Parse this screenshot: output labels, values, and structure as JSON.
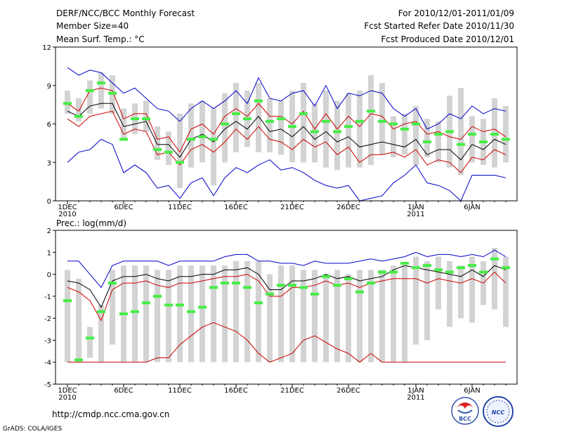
{
  "header": {
    "title": "DERF/NCC/BCC Monthly Forecast",
    "member_size": "Member Size=40",
    "for_range": "For 2010/12/01-2011/01/09",
    "fcst_started": "Fcst Started Refer Date 2010/11/30",
    "fcst_produced": "Fcst Produced Date 2010/12/01"
  },
  "footer": {
    "url": "http://cmdp.ncc.cma.gov.cn",
    "grads": "GrADS: COLA/IGES",
    "logo_left": "BCC",
    "logo_right": "NCC"
  },
  "colors": {
    "envelope": "#0000cc",
    "spread": "#cc0000",
    "mean": "#000000",
    "box": "#d3d3d3",
    "observed": "#44ee44"
  },
  "chart_data": [
    {
      "type": "box-line",
      "title": "Mean Surf. Temp.: °C",
      "ylim": [
        0,
        12
      ],
      "yticks": [
        0,
        3,
        6,
        9,
        12
      ],
      "xticks": [
        {
          "day": 0,
          "label": "1DEC",
          "sub": "2010"
        },
        {
          "day": 5,
          "label": "6DEC",
          "sub": ""
        },
        {
          "day": 10,
          "label": "11DEC",
          "sub": ""
        },
        {
          "day": 15,
          "label": "16DEC",
          "sub": ""
        },
        {
          "day": 20,
          "label": "21DEC",
          "sub": ""
        },
        {
          "day": 25,
          "label": "26DEC",
          "sub": ""
        },
        {
          "day": 31,
          "label": "1JAN",
          "sub": "2011"
        },
        {
          "day": 36,
          "label": "6JAN",
          "sub": ""
        }
      ],
      "box_low": [
        6.8,
        6.2,
        6.8,
        7.2,
        6.8,
        4.8,
        5.2,
        5.4,
        3.2,
        2.8,
        1.0,
        2.6,
        3.0,
        1.2,
        3.0,
        3.8,
        4.2,
        3.8,
        3.8,
        3.6,
        3.0,
        3.0,
        3.0,
        2.6,
        2.4,
        2.6,
        2.6,
        2.8,
        3.6,
        3.4,
        3.6,
        2.8,
        3.4,
        3.0,
        2.6,
        2.0,
        3.0,
        2.8,
        2.6,
        3.0
      ],
      "box_high": [
        8.6,
        8.0,
        9.4,
        10.0,
        9.8,
        7.2,
        7.6,
        7.8,
        5.8,
        5.4,
        6.8,
        7.6,
        7.8,
        7.2,
        8.4,
        9.2,
        8.6,
        9.2,
        8.0,
        7.8,
        8.6,
        9.2,
        7.6,
        8.6,
        7.8,
        8.4,
        8.6,
        9.8,
        9.2,
        6.6,
        6.8,
        7.4,
        6.4,
        6.2,
        8.2,
        8.8,
        6.6,
        6.4,
        8.0,
        7.4
      ],
      "observed": [
        7.6,
        6.6,
        8.6,
        9.2,
        8.4,
        4.8,
        6.4,
        6.4,
        4.0,
        3.8,
        3.0,
        4.8,
        5.0,
        4.8,
        6.0,
        6.8,
        6.4,
        7.8,
        6.2,
        6.4,
        5.8,
        6.8,
        5.4,
        6.2,
        5.4,
        5.8,
        6.2,
        7.0,
        6.2,
        6.0,
        5.6,
        6.0,
        4.6,
        5.2,
        5.4,
        4.4,
        5.2,
        4.6,
        5.2,
        4.8
      ],
      "series": [
        {
          "name": "Max",
          "color": "#0000cc",
          "values": [
            10.4,
            9.8,
            10.2,
            10.0,
            9.2,
            8.4,
            8.8,
            8.0,
            7.2,
            7.0,
            6.2,
            7.2,
            7.8,
            7.2,
            7.8,
            8.6,
            7.6,
            9.6,
            8.0,
            7.8,
            8.4,
            8.6,
            7.4,
            9.0,
            7.2,
            8.4,
            8.2,
            8.6,
            8.4,
            7.2,
            6.6,
            7.2,
            5.6,
            6.0,
            6.8,
            6.4,
            7.4,
            6.8,
            7.2,
            7.0
          ]
        },
        {
          "name": "Upper",
          "color": "#cc0000",
          "values": [
            7.6,
            7.0,
            8.6,
            8.8,
            8.6,
            6.4,
            6.8,
            6.8,
            4.8,
            5.0,
            3.8,
            5.6,
            6.0,
            5.2,
            6.6,
            7.2,
            6.6,
            7.6,
            6.6,
            6.6,
            6.0,
            7.0,
            5.6,
            6.8,
            5.6,
            6.6,
            5.8,
            6.8,
            6.6,
            5.6,
            6.0,
            6.2,
            5.2,
            5.4,
            5.0,
            4.8,
            5.8,
            5.4,
            5.6,
            5.0
          ]
        },
        {
          "name": "Mean",
          "color": "#000000",
          "values": [
            7.0,
            6.6,
            7.4,
            7.6,
            7.6,
            5.8,
            6.0,
            6.2,
            4.4,
            4.4,
            3.4,
            4.8,
            5.2,
            4.6,
            5.6,
            6.2,
            5.6,
            6.6,
            5.4,
            5.6,
            5.0,
            5.8,
            4.8,
            5.4,
            4.6,
            5.0,
            4.2,
            4.4,
            4.6,
            4.4,
            4.2,
            4.8,
            3.6,
            4.0,
            4.0,
            3.2,
            4.4,
            4.0,
            4.8,
            4.4
          ]
        },
        {
          "name": "Lower",
          "color": "#cc0000",
          "values": [
            6.4,
            5.8,
            6.6,
            6.8,
            7.0,
            5.2,
            5.6,
            5.4,
            3.6,
            3.8,
            2.8,
            4.0,
            4.4,
            3.8,
            4.6,
            5.6,
            4.8,
            5.8,
            4.8,
            4.6,
            4.0,
            4.8,
            4.2,
            4.6,
            3.6,
            4.2,
            3.0,
            3.6,
            3.6,
            3.8,
            3.4,
            4.0,
            2.8,
            3.2,
            3.0,
            2.2,
            3.4,
            3.2,
            4.0,
            3.6
          ]
        },
        {
          "name": "Min",
          "color": "#0000cc",
          "values": [
            3.0,
            3.8,
            4.0,
            4.8,
            4.4,
            2.2,
            2.8,
            2.2,
            1.0,
            1.2,
            0.2,
            1.4,
            1.8,
            0.4,
            1.8,
            2.6,
            2.2,
            2.8,
            3.2,
            2.4,
            2.6,
            2.2,
            1.6,
            1.2,
            1.0,
            1.2,
            0.0,
            0.2,
            0.4,
            1.4,
            2.0,
            2.8,
            1.4,
            1.2,
            0.8,
            -0.2,
            2.0,
            2.0,
            2.0,
            1.8
          ]
        }
      ]
    },
    {
      "type": "box-line",
      "title": "Prec.: log(mm/d)",
      "ylim": [
        -5,
        2
      ],
      "yticks": [
        -5,
        -4,
        -3,
        -2,
        -1,
        0,
        1,
        2
      ],
      "xticks": [
        {
          "day": 0,
          "label": "1DEC",
          "sub": "2010"
        },
        {
          "day": 5,
          "label": "6DEC",
          "sub": ""
        },
        {
          "day": 10,
          "label": "11DEC",
          "sub": ""
        },
        {
          "day": 15,
          "label": "16DEC",
          "sub": ""
        },
        {
          "day": 20,
          "label": "21DEC",
          "sub": ""
        },
        {
          "day": 25,
          "label": "26DEC",
          "sub": ""
        },
        {
          "day": 31,
          "label": "1JAN",
          "sub": "2011"
        },
        {
          "day": 36,
          "label": "6JAN",
          "sub": ""
        }
      ],
      "box_low": [
        -4.0,
        -4.0,
        -3.8,
        -4.0,
        -3.2,
        -4.0,
        -4.0,
        -4.0,
        -4.0,
        -4.0,
        -4.0,
        -4.0,
        -4.0,
        -4.0,
        -4.0,
        -4.0,
        -4.0,
        -4.0,
        -4.0,
        -4.0,
        -4.0,
        -4.0,
        -4.0,
        -4.0,
        -4.0,
        -4.0,
        -4.0,
        -4.0,
        -4.0,
        -4.0,
        -4.0,
        -3.2,
        -3.0,
        -1.6,
        -2.4,
        -2.0,
        -2.2,
        -1.4,
        -1.6,
        -2.4
      ],
      "box_high": [
        0.2,
        -0.2,
        -2.4,
        -1.4,
        0.2,
        0.4,
        0.4,
        0.4,
        0.2,
        0.2,
        0.4,
        0.4,
        0.4,
        0.4,
        0.4,
        0.6,
        0.6,
        0.6,
        0.0,
        0.4,
        0.4,
        0.2,
        0.2,
        0.0,
        0.2,
        0.0,
        0.2,
        0.2,
        0.2,
        0.4,
        0.4,
        0.8,
        0.6,
        0.8,
        0.6,
        0.4,
        0.8,
        0.6,
        1.2,
        0.8
      ],
      "observed": [
        -1.2,
        -3.9,
        -2.9,
        -1.7,
        -0.4,
        -1.8,
        -1.7,
        -1.3,
        -1.0,
        -1.4,
        -1.4,
        -1.7,
        -1.5,
        -0.6,
        -0.4,
        -0.4,
        -0.6,
        -1.3,
        -0.9,
        -0.5,
        -0.5,
        -0.6,
        -0.9,
        -0.1,
        -0.5,
        -0.2,
        -0.8,
        -0.4,
        0.1,
        0.1,
        0.5,
        0.3,
        0.4,
        0.2,
        0.1,
        0.3,
        0.4,
        0.1,
        0.7,
        0.3
      ],
      "series": [
        {
          "name": "Max",
          "color": "#0000cc",
          "values": [
            0.6,
            0.6,
            0.0,
            -0.6,
            0.4,
            0.6,
            0.6,
            0.6,
            0.6,
            0.4,
            0.6,
            0.6,
            0.6,
            0.6,
            0.8,
            0.9,
            0.9,
            0.6,
            0.6,
            0.5,
            0.5,
            0.4,
            0.6,
            0.5,
            0.5,
            0.5,
            0.6,
            0.7,
            0.6,
            0.7,
            0.8,
            1.0,
            0.8,
            0.9,
            0.9,
            0.8,
            0.9,
            0.8,
            1.1,
            0.8
          ]
        },
        {
          "name": "Upper",
          "color": "#000000",
          "values": [
            -0.3,
            -0.4,
            -0.7,
            -1.5,
            -0.3,
            -0.1,
            -0.1,
            0.0,
            -0.2,
            -0.3,
            -0.1,
            -0.1,
            0.0,
            0.0,
            0.2,
            0.2,
            0.3,
            0.0,
            -0.7,
            -0.7,
            -0.3,
            -0.3,
            -0.2,
            0.0,
            -0.2,
            -0.1,
            -0.3,
            -0.2,
            -0.1,
            0.2,
            0.4,
            0.3,
            0.2,
            0.1,
            0.0,
            -0.1,
            0.2,
            -0.1,
            0.4,
            0.2
          ]
        },
        {
          "name": "Lower",
          "color": "#cc0000",
          "values": [
            -0.6,
            -0.8,
            -1.2,
            -2.1,
            -0.7,
            -0.4,
            -0.4,
            -0.3,
            -0.5,
            -0.6,
            -0.4,
            -0.4,
            -0.3,
            -0.2,
            -0.1,
            -0.1,
            0.0,
            -0.3,
            -1.0,
            -1.0,
            -0.6,
            -0.6,
            -0.5,
            -0.3,
            -0.5,
            -0.4,
            -0.6,
            -0.4,
            -0.3,
            -0.2,
            -0.2,
            -0.2,
            -0.4,
            -0.2,
            -0.3,
            -0.4,
            -0.2,
            -0.4,
            0.1,
            -0.4
          ]
        },
        {
          "name": "Min",
          "color": "#cc0000",
          "values": [
            -4.0,
            -4.0,
            -4.0,
            -4.0,
            -4.0,
            -4.0,
            -4.0,
            -4.0,
            -3.8,
            -3.8,
            -3.2,
            -2.8,
            -2.4,
            -2.2,
            -2.4,
            -2.6,
            -3.0,
            -3.6,
            -4.0,
            -3.8,
            -3.6,
            -3.0,
            -2.8,
            -3.1,
            -3.4,
            -3.6,
            -4.0,
            -3.6,
            -4.0,
            -4.0,
            -4.0,
            -4.0,
            -4.0,
            -4.0,
            -4.0,
            -4.0,
            -4.0,
            -4.0,
            -4.0,
            -4.0
          ]
        }
      ]
    }
  ]
}
